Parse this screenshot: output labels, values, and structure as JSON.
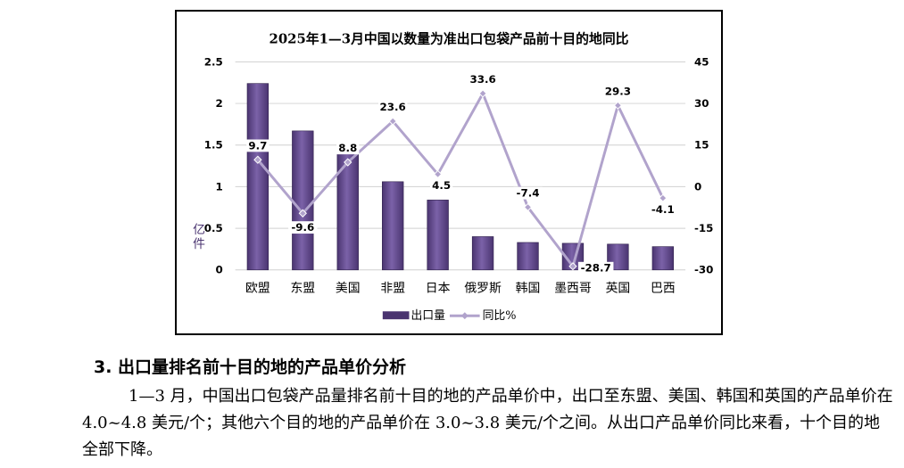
{
  "chart_data": {
    "type": "bar",
    "title": "2025年1—3月中国以数量为准出口包袋产品前十目的地同比",
    "categories": [
      "欧盟",
      "东盟",
      "美国",
      "非盟",
      "日本",
      "俄罗斯",
      "韩国",
      "墨西哥",
      "英国",
      "巴西"
    ],
    "series": [
      {
        "name": "出口量",
        "type": "bar",
        "axis": "left",
        "values": [
          2.24,
          1.67,
          1.4,
          1.06,
          0.84,
          0.4,
          0.33,
          0.32,
          0.31,
          0.28
        ]
      },
      {
        "name": "同比%",
        "type": "line",
        "axis": "right",
        "values": [
          9.7,
          -9.6,
          8.8,
          23.6,
          4.5,
          33.6,
          -7.4,
          -28.7,
          29.3,
          -4.1
        ],
        "labels": [
          "9.7",
          "-9.6",
          "8.8",
          "23.6",
          "4.5",
          "33.6",
          "-7.4",
          "-28.7",
          "29.3",
          "-4.1"
        ]
      }
    ],
    "ylabel": "亿件",
    "ylim": [
      0,
      2.5
    ],
    "y_ticks": [
      "0",
      "0.5",
      "1",
      "1.5",
      "2",
      "2.5"
    ],
    "y2lim": [
      -30,
      45
    ],
    "y2_ticks": [
      "-30",
      "-15",
      "0",
      "15",
      "30",
      "45"
    ],
    "grid": true,
    "legend_position": "bottom",
    "colors": {
      "bar": "#4a3470",
      "bar_light": "#7b62a8",
      "line": "#b1a3cc",
      "grid": "#d0d0d0"
    }
  },
  "section": {
    "heading": "3. 出口量排名前十目的地的产品单价分析",
    "paragraph": "1—3 月，中国出口包袋产品量排名前十目的地的产品单价中，出口至东盟、美国、韩国和英国的产品单价在 4.0~4.8 美元/个；其他六个目的地的产品单价在 3.0~3.8 美元/个之间。从出口产品单价同比来看，十个目的地全部下降。"
  }
}
